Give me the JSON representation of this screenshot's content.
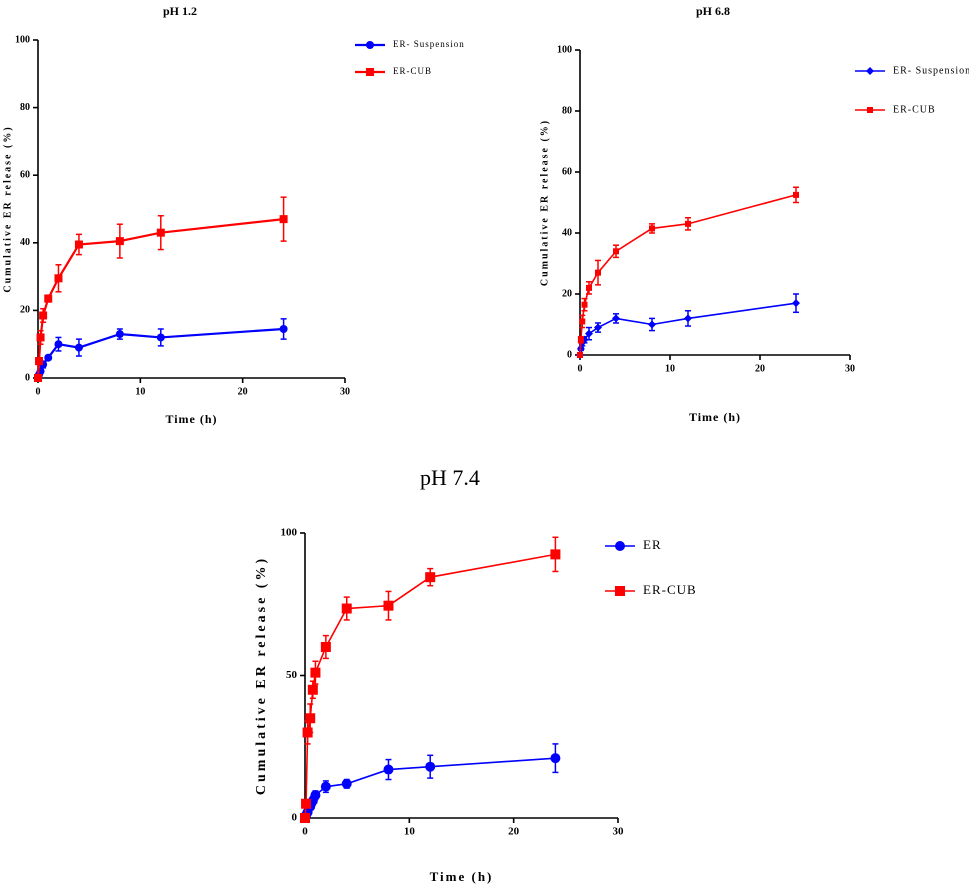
{
  "chart_data": [
    {
      "type": "line",
      "title": "pH 1.2",
      "xlabel": "Time (h)",
      "ylabel": "Cumulative ER release (%)",
      "x": [
        0,
        0.1,
        0.25,
        0.5,
        1,
        2,
        4,
        8,
        12,
        24
      ],
      "series": [
        {
          "name": "ER- Suspension",
          "color": "#0000ff",
          "marker": "circle",
          "values": [
            0,
            1,
            2,
            4,
            6,
            10,
            9,
            13,
            12,
            14.5
          ],
          "errors": [
            0,
            0.5,
            0.5,
            1,
            0.5,
            2,
            2.5,
            1.5,
            2.5,
            3
          ]
        },
        {
          "name": "ER-CUB",
          "color": "#ff0000",
          "marker": "square",
          "values": [
            0,
            5,
            12,
            18.5,
            23.5,
            29.5,
            39.5,
            40.5,
            43,
            47
          ],
          "errors": [
            0,
            1,
            2,
            2,
            1,
            4,
            3,
            5,
            5,
            6.5
          ]
        }
      ],
      "xlim": [
        0,
        30
      ],
      "xticks": [
        0,
        10,
        20,
        30
      ],
      "ylim": [
        0,
        100
      ],
      "yticks": [
        0,
        20,
        40,
        60,
        80,
        100
      ]
    },
    {
      "type": "line",
      "title": "pH 6.8",
      "xlabel": "Time (h)",
      "ylabel": "Cumulative ER release (%)",
      "x": [
        0,
        0.1,
        0.25,
        0.5,
        1,
        2,
        4,
        8,
        12,
        24
      ],
      "series": [
        {
          "name": "ER- Suspension",
          "color": "#0000ff",
          "marker": "diamond",
          "values": [
            0,
            2,
            4,
            5,
            7,
            9,
            12,
            10,
            12,
            17
          ],
          "errors": [
            0,
            0.5,
            1,
            1,
            2,
            1.5,
            1.5,
            2,
            2.5,
            3
          ]
        },
        {
          "name": "ER-CUB",
          "color": "#ff0000",
          "marker": "square",
          "values": [
            0,
            5,
            11,
            16.5,
            22,
            27,
            34,
            41.5,
            43,
            52.5
          ],
          "errors": [
            0,
            1,
            2,
            2,
            2,
            4,
            2,
            1.5,
            2,
            2.5
          ]
        }
      ],
      "xlim": [
        0,
        30
      ],
      "xticks": [
        0,
        10,
        20,
        30
      ],
      "ylim": [
        0,
        100
      ],
      "yticks": [
        0,
        20,
        40,
        60,
        80,
        100
      ]
    },
    {
      "type": "line",
      "title": "pH 7.4",
      "xlabel": "Time (h)",
      "ylabel": "Cumulative ER release (%)",
      "x": [
        0,
        0.1,
        0.25,
        0.5,
        0.75,
        1,
        2,
        4,
        8,
        12,
        24
      ],
      "series": [
        {
          "name": "ER",
          "color": "#0000ff",
          "marker": "circle",
          "values": [
            0,
            1,
            2,
            4,
            6,
            8,
            11,
            12,
            17,
            18,
            21
          ],
          "errors": [
            0,
            0.5,
            1,
            1,
            1.5,
            1.5,
            2,
            1.5,
            3.5,
            4,
            5
          ]
        },
        {
          "name": "ER-CUB",
          "color": "#ff0000",
          "marker": "square",
          "values": [
            0,
            5,
            30,
            35,
            45,
            51,
            60,
            73.5,
            74.5,
            84.5,
            92.5
          ],
          "errors": [
            0,
            1,
            4,
            5,
            3,
            4,
            4,
            4,
            5,
            3,
            6
          ]
        }
      ],
      "xlim": [
        0,
        30
      ],
      "xticks": [
        0,
        10,
        20,
        30
      ],
      "ylim": [
        0,
        100
      ],
      "yticks": [
        0,
        50,
        100
      ]
    }
  ]
}
